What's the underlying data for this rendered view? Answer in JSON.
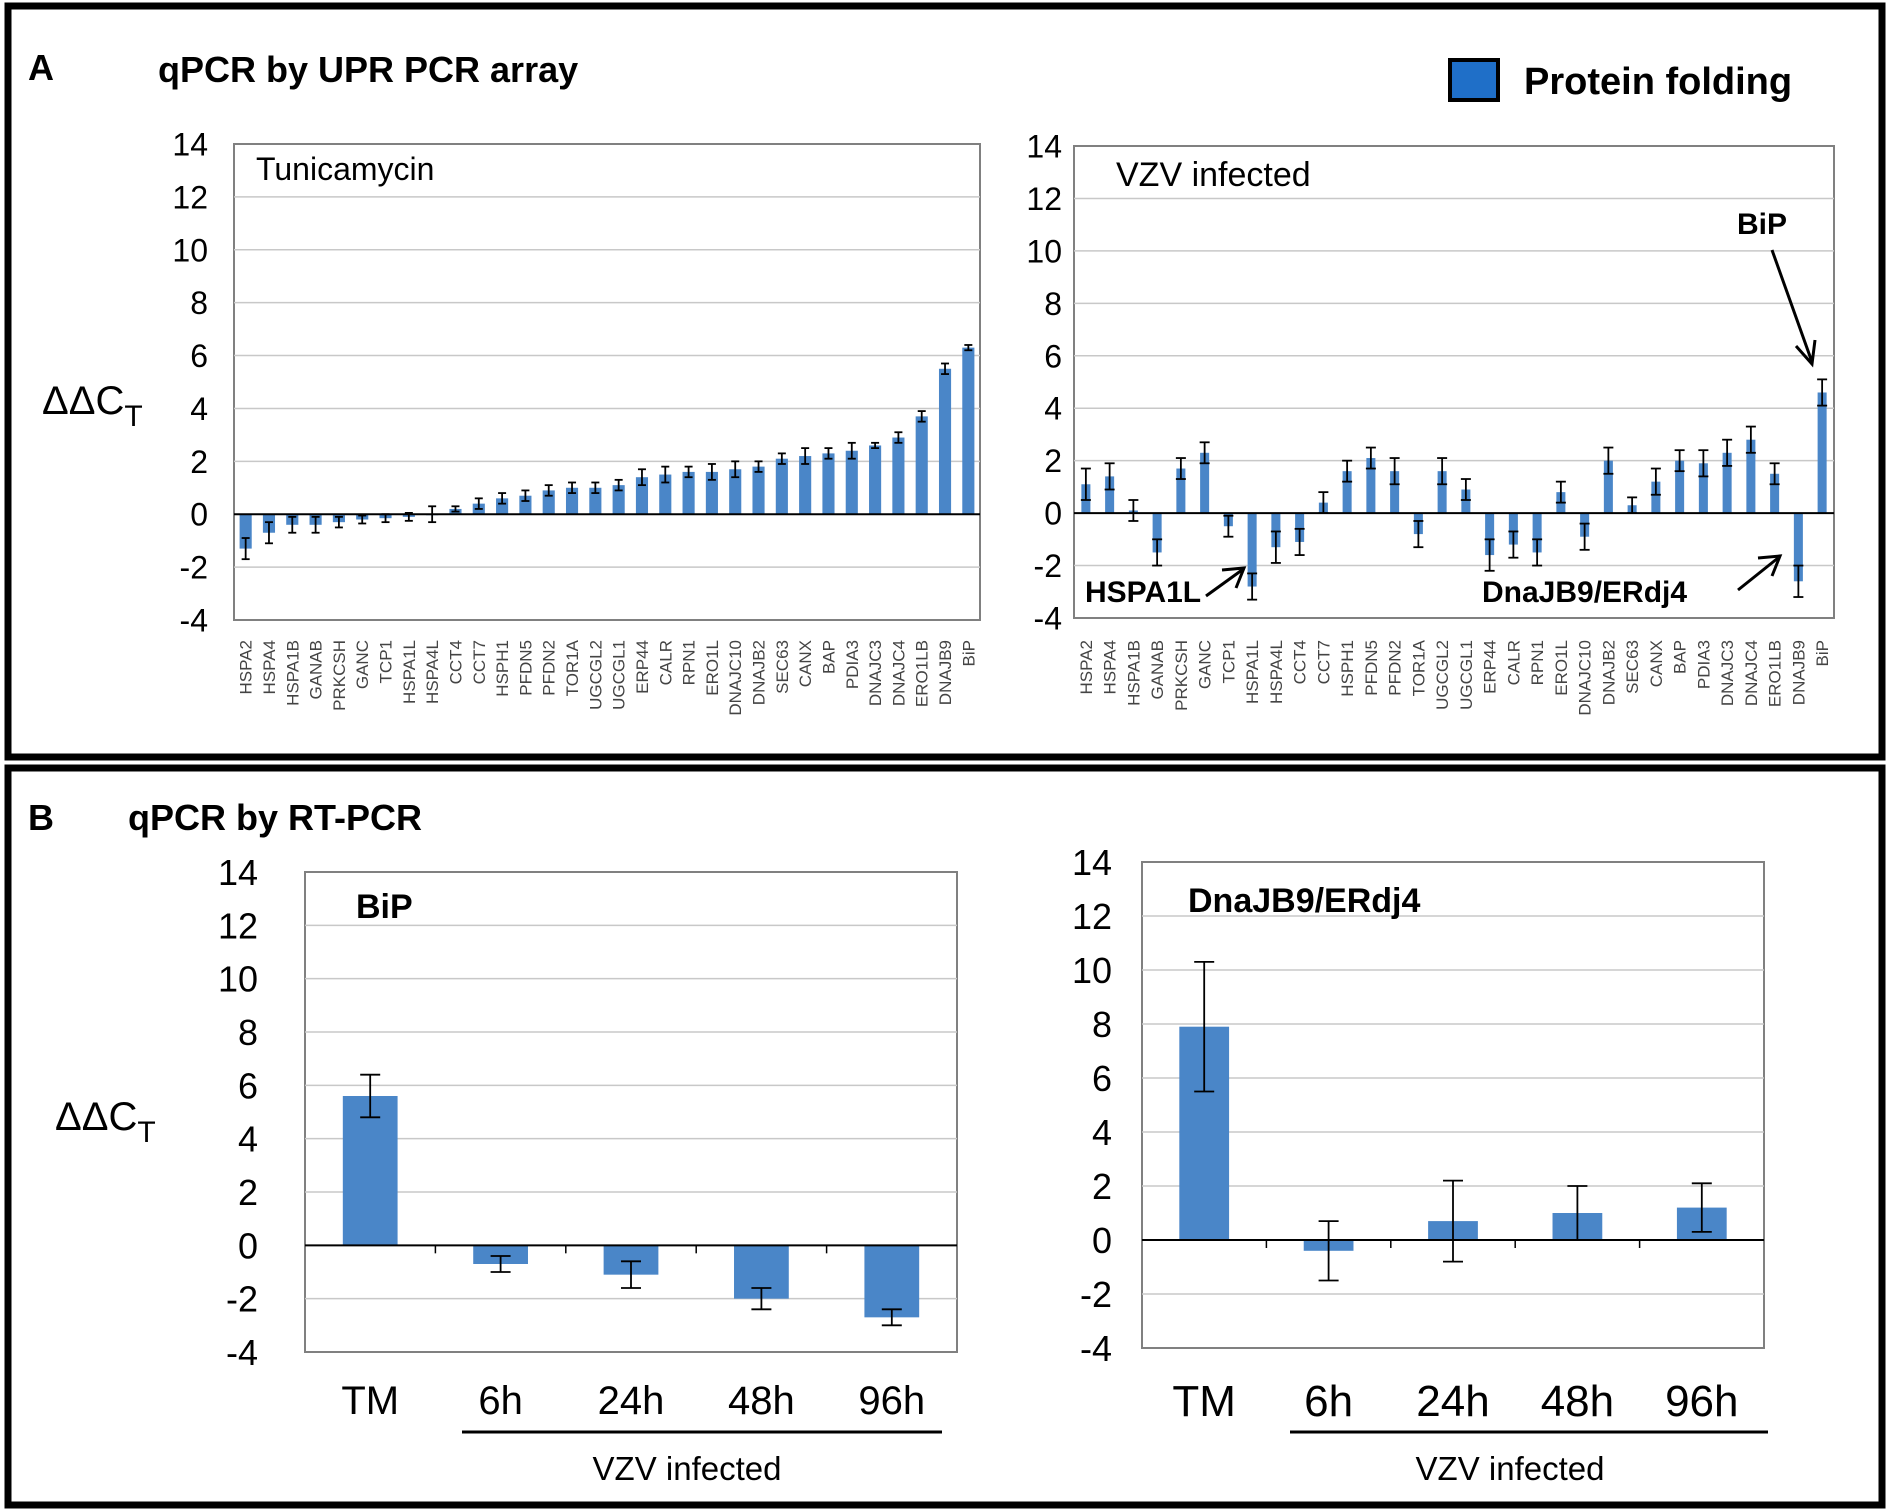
{
  "panel_a": {
    "letter": "A",
    "title": "qPCR by UPR PCR array",
    "legend_label": "Protein folding",
    "y_axis_label": {
      "main": "ΔΔC",
      "sub": "T"
    },
    "annotations": {
      "bip": "BiP",
      "hspa1l": "HSPA1L",
      "dnajb9": "DnaJB9/ERdj4"
    }
  },
  "panel_b": {
    "letter": "B",
    "title": "qPCR by RT-PCR",
    "y_axis_label": {
      "main": "ΔΔC",
      "sub": "T"
    },
    "group_label": "VZV infected"
  },
  "colors": {
    "bar": "#4a86c8",
    "legend": "#1f6fc8",
    "grid": "#c8c8c8",
    "axis": "#808080"
  },
  "chart_data": [
    {
      "id": "a1",
      "type": "bar",
      "title": "Tunicamycin",
      "ylabel": "ΔΔCT",
      "ylim": [
        -4,
        14
      ],
      "yticks": [
        -4,
        -2,
        0,
        2,
        4,
        6,
        8,
        10,
        12,
        14
      ],
      "categories": [
        "HSPA2",
        "HSPA4",
        "HSPA1B",
        "GANAB",
        "PRKCSH",
        "GANC",
        "TCP1",
        "HSPA1L",
        "HSPA4L",
        "CCT4",
        "CCT7",
        "HSPH1",
        "PFDN5",
        "PFDN2",
        "TOR1A",
        "UGCGL2",
        "UGCGL1",
        "ERP44",
        "CALR",
        "RPN1",
        "ERO1L",
        "DNAJC10",
        "DNAJB2",
        "SEC63",
        "CANX",
        "BAP",
        "PDIA3",
        "DNAJC3",
        "DNAJC4",
        "ERO1LB",
        "DNAJB9",
        "BiP"
      ],
      "values": [
        -1.3,
        -0.7,
        -0.4,
        -0.4,
        -0.3,
        -0.2,
        -0.15,
        -0.1,
        0.0,
        0.2,
        0.4,
        0.6,
        0.7,
        0.9,
        1.0,
        1.0,
        1.1,
        1.4,
        1.5,
        1.6,
        1.6,
        1.7,
        1.8,
        2.1,
        2.2,
        2.3,
        2.4,
        2.6,
        2.9,
        3.7,
        5.5,
        6.3
      ],
      "errors": [
        0.4,
        0.4,
        0.3,
        0.3,
        0.2,
        0.15,
        0.15,
        0.15,
        0.3,
        0.1,
        0.2,
        0.2,
        0.2,
        0.2,
        0.2,
        0.2,
        0.2,
        0.3,
        0.3,
        0.2,
        0.3,
        0.3,
        0.2,
        0.2,
        0.3,
        0.2,
        0.3,
        0.1,
        0.2,
        0.2,
        0.2,
        0.1
      ]
    },
    {
      "id": "a2",
      "type": "bar",
      "title": "VZV infected",
      "ylabel": "ΔΔCT",
      "ylim": [
        -4,
        14
      ],
      "yticks": [
        -4,
        -2,
        0,
        2,
        4,
        6,
        8,
        10,
        12,
        14
      ],
      "categories": [
        "HSPA2",
        "HSPA4",
        "HSPA1B",
        "GANAB",
        "PRKCSH",
        "GANC",
        "TCP1",
        "HSPA1L",
        "HSPA4L",
        "CCT4",
        "CCT7",
        "HSPH1",
        "PFDN5",
        "PFDN2",
        "TOR1A",
        "UGCGL2",
        "UGCGL1",
        "ERP44",
        "CALR",
        "RPN1",
        "ERO1L",
        "DNAJC10",
        "DNAJB2",
        "SEC63",
        "CANX",
        "BAP",
        "PDIA3",
        "DNAJC3",
        "DNAJC4",
        "ERO1LB",
        "DNAJB9",
        "BiP"
      ],
      "values": [
        1.1,
        1.4,
        0.1,
        -1.5,
        1.7,
        2.3,
        -0.5,
        -2.8,
        -1.3,
        -1.1,
        0.4,
        1.6,
        2.1,
        1.6,
        -0.8,
        1.6,
        0.9,
        -1.6,
        -1.2,
        -1.5,
        0.8,
        -0.9,
        2.0,
        0.3,
        1.2,
        2.0,
        1.9,
        2.3,
        2.8,
        1.5,
        -2.6,
        4.6
      ],
      "errors": [
        0.6,
        0.5,
        0.4,
        0.5,
        0.4,
        0.4,
        0.4,
        0.5,
        0.6,
        0.5,
        0.4,
        0.4,
        0.4,
        0.5,
        0.5,
        0.5,
        0.4,
        0.6,
        0.5,
        0.5,
        0.4,
        0.5,
        0.5,
        0.3,
        0.5,
        0.4,
        0.5,
        0.5,
        0.5,
        0.4,
        0.6,
        0.5
      ]
    },
    {
      "id": "b1",
      "type": "bar",
      "title": "BiP",
      "ylabel": "ΔΔCT",
      "ylim": [
        -4,
        14
      ],
      "yticks": [
        -4,
        -2,
        0,
        2,
        4,
        6,
        8,
        10,
        12,
        14
      ],
      "categories": [
        "TM",
        "6h",
        "24h",
        "48h",
        "96h"
      ],
      "values": [
        5.6,
        -0.7,
        -1.1,
        -2.0,
        -2.7
      ],
      "errors": [
        0.8,
        0.3,
        0.5,
        0.4,
        0.3
      ]
    },
    {
      "id": "b2",
      "type": "bar",
      "title": "DnaJB9/ERdj4",
      "ylabel": "ΔΔCT",
      "ylim": [
        -4,
        14
      ],
      "yticks": [
        -4,
        -2,
        0,
        2,
        4,
        6,
        8,
        10,
        12,
        14
      ],
      "categories": [
        "TM",
        "6h",
        "24h",
        "48h",
        "96h"
      ],
      "values": [
        7.9,
        -0.4,
        0.7,
        1.0,
        1.2
      ],
      "errors": [
        2.4,
        1.1,
        1.5,
        1.0,
        0.9
      ]
    }
  ]
}
